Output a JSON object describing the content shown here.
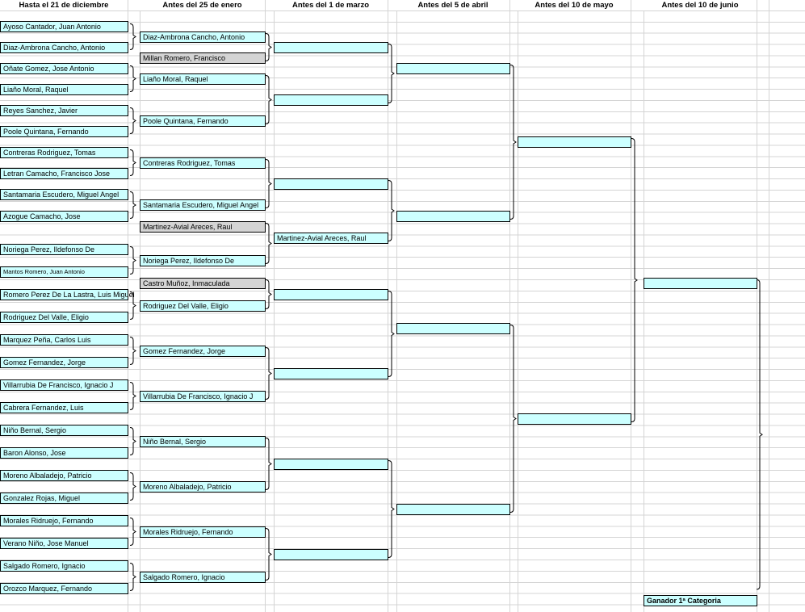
{
  "colors": {
    "cell": "#ccffff",
    "shaded": "#d4d4d4",
    "grid": "#d4d4d4"
  },
  "headers": [
    "Hasta el 21 de diciembre",
    "Antes del 25 de enero",
    "Antes del 1 de marzo",
    "Antes del 5 de abril",
    "Antes del 10 de mayo",
    "Antes del 10 de junio"
  ],
  "rounds": [
    {
      "entries": [
        {
          "name": "Ayoso Cantador, Juan Antonio"
        },
        {
          "name": "Diaz-Ambrona Cancho, Antonio"
        },
        {
          "name": "Oñate Gomez, Jose Antonio"
        },
        {
          "name": "Liaño Moral, Raquel"
        },
        {
          "name": "Reyes Sanchez, Javier"
        },
        {
          "name": "Poole Quintana, Fernando"
        },
        {
          "name": "Contreras Rodriguez, Tomas"
        },
        {
          "name": "Letran Camacho, Francisco Jose"
        },
        {
          "name": "Santamaria Escudero, Miguel Angel"
        },
        {
          "name": "Azogue Camacho, Jose"
        },
        {
          "name": "Noriega Perez, Ildefonso De"
        },
        {
          "name": "Mantos Romero, Juan Antonio"
        },
        {
          "name": "Romero Perez De La Lastra, Luis Miguel"
        },
        {
          "name": "Rodriguez Del Valle, Eligio"
        },
        {
          "name": "Marquez Peña, Carlos Luis"
        },
        {
          "name": "Gomez Fernandez, Jorge"
        },
        {
          "name": "Villarrubia De Francisco, Ignacio J"
        },
        {
          "name": "Cabrera Fernandez, Luis"
        },
        {
          "name": "Niño Bernal, Sergio"
        },
        {
          "name": "Baron Alonso, Jose"
        },
        {
          "name": "Moreno Albaladejo, Patricio"
        },
        {
          "name": "Gonzalez Rojas, Miguel"
        },
        {
          "name": "Morales Ridruejo, Fernando"
        },
        {
          "name": "Verano  Niño, Jose Manuel"
        },
        {
          "name": "Salgado Romero, Ignacio"
        },
        {
          "name": "Orozco Marquez, Fernando"
        }
      ]
    },
    {
      "entries": [
        {
          "name": "Diaz-Ambrona Cancho, Antonio"
        },
        {
          "name": "Millan  Romero, Francisco",
          "shaded": true
        },
        {
          "name": "Liaño Moral, Raquel"
        },
        {
          "name": "Poole Quintana, Fernando"
        },
        {
          "name": "Contreras Rodriguez, Tomas"
        },
        {
          "name": "Santamaria Escudero, Miguel Angel"
        },
        {
          "name": "Martinez-Avial Areces, Raul",
          "shaded": true
        },
        {
          "name": "Noriega Perez, Ildefonso De"
        },
        {
          "name": "Castro Muñoz, Inmaculada",
          "shaded": true
        },
        {
          "name": "Rodriguez Del Valle, Eligio"
        },
        {
          "name": "Gomez Fernandez, Jorge"
        },
        {
          "name": "Villarrubia De Francisco, Ignacio J"
        },
        {
          "name": "Niño Bernal, Sergio"
        },
        {
          "name": "Moreno Albaladejo, Patricio"
        },
        {
          "name": "Morales Ridruejo, Fernando"
        },
        {
          "name": "Salgado Romero, Ignacio"
        }
      ]
    },
    {
      "entries": [
        {
          "name": ""
        },
        {
          "name": ""
        },
        {
          "name": ""
        },
        {
          "name": "Martinez-Avial Areces, Raul"
        },
        {
          "name": ""
        },
        {
          "name": ""
        },
        {
          "name": ""
        },
        {
          "name": ""
        }
      ]
    },
    {
      "entries": [
        {
          "name": ""
        },
        {
          "name": ""
        },
        {
          "name": ""
        },
        {
          "name": ""
        }
      ]
    },
    {
      "entries": [
        {
          "name": ""
        },
        {
          "name": ""
        }
      ]
    },
    {
      "entries": [
        {
          "name": ""
        }
      ]
    }
  ],
  "winner_label": "Ganador 1ª Categoria"
}
